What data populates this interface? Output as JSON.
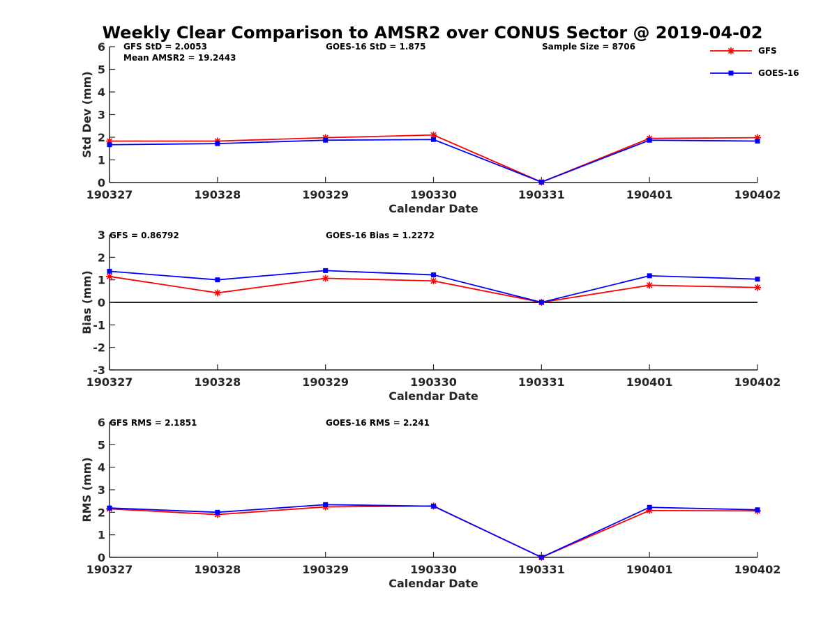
{
  "figure_title": "Weekly Clear Comparison to AMSR2 over CONUS Sector @ 2019-04-02",
  "legend": [
    {
      "label": "GFS",
      "color": "#ff0000",
      "marker": "asterisk"
    },
    {
      "label": "GOES-16",
      "color": "#0000ff",
      "marker": "square"
    }
  ],
  "colors": {
    "gfs": "#ff0000",
    "goes16": "#0000ff",
    "axis": "#262626"
  },
  "chart_data": [
    {
      "type": "line",
      "xlabel": "Calendar Date",
      "ylabel": "Std Dev (mm)",
      "ylim": [
        0,
        6
      ],
      "yticks": [
        0,
        1,
        2,
        3,
        4,
        5,
        6
      ],
      "categories": [
        "190327",
        "190328",
        "190329",
        "190330",
        "190331",
        "190401",
        "190402"
      ],
      "series": [
        {
          "name": "GFS",
          "values": [
            1.83,
            1.83,
            1.98,
            2.1,
            0.02,
            1.95,
            1.98
          ]
        },
        {
          "name": "GOES-16",
          "values": [
            1.67,
            1.72,
            1.87,
            1.9,
            0.02,
            1.87,
            1.83
          ]
        }
      ],
      "annotations": [
        "GFS StD = 2.0053",
        "GOES-16 StD = 1.875",
        "Sample Size = 8706",
        "Mean AMSR2 = 19.2443"
      ],
      "zero_line": false
    },
    {
      "type": "line",
      "xlabel": "Calendar Date",
      "ylabel": "Bias (mm)",
      "ylim": [
        -3,
        3
      ],
      "yticks": [
        -3,
        -2,
        -1,
        0,
        1,
        2,
        3
      ],
      "categories": [
        "190327",
        "190328",
        "190329",
        "190330",
        "190331",
        "190401",
        "190402"
      ],
      "series": [
        {
          "name": "GFS",
          "values": [
            1.15,
            0.42,
            1.07,
            0.95,
            0.0,
            0.76,
            0.66
          ]
        },
        {
          "name": "GOES-16",
          "values": [
            1.38,
            1.0,
            1.41,
            1.22,
            0.0,
            1.18,
            1.03
          ]
        }
      ],
      "annotations": [
        "GFS = 0.86792",
        "GOES-16 Bias  = 1.2272"
      ],
      "zero_line": true
    },
    {
      "type": "line",
      "xlabel": "Calendar Date",
      "ylabel": "RMS (mm)",
      "ylim": [
        0,
        6
      ],
      "yticks": [
        0,
        1,
        2,
        3,
        4,
        5,
        6
      ],
      "categories": [
        "190327",
        "190328",
        "190329",
        "190330",
        "190331",
        "190401",
        "190402"
      ],
      "series": [
        {
          "name": "GFS",
          "values": [
            2.15,
            1.9,
            2.24,
            2.28,
            0.0,
            2.08,
            2.06
          ]
        },
        {
          "name": "GOES-16",
          "values": [
            2.19,
            2.0,
            2.34,
            2.27,
            0.0,
            2.22,
            2.11
          ]
        }
      ],
      "annotations": [
        "GFS RMS = 2.1851",
        "GOES-16 RMS = 2.241"
      ],
      "zero_line": false
    }
  ]
}
